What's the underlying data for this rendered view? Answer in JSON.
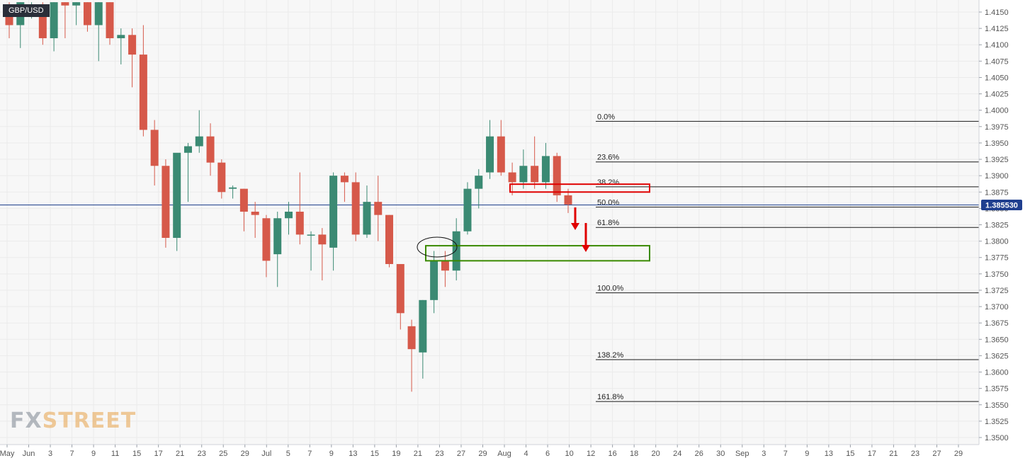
{
  "symbol": "GBP/USD",
  "logo": {
    "part1": "FX",
    "part2": "STREET"
  },
  "current_price_label": "1.385530",
  "colors": {
    "up": "#3b8a73",
    "down": "#d6594a",
    "fib": "#1a1a1a",
    "price_line": "#1c3f8c",
    "resistance_box": "#e00000",
    "target_box": "#3a8a00",
    "arrow": "#e00000"
  },
  "chart_data": {
    "type": "candlestick",
    "ylim": [
      1.3485,
      1.417
    ],
    "y_ticks": [
      "1.4150",
      "1.4125",
      "1.4100",
      "1.4075",
      "1.4050",
      "1.4025",
      "1.4000",
      "1.3975",
      "1.3950",
      "1.3925",
      "1.3900",
      "1.3875",
      "1.3850",
      "1.3825",
      "1.3800",
      "1.3775",
      "1.3750",
      "1.3725",
      "1.3700",
      "1.3675",
      "1.3650",
      "1.3625",
      "1.3600",
      "1.3575",
      "1.3550",
      "1.3525",
      "1.3500"
    ],
    "x_ticks": [
      "May",
      "Jun",
      "3",
      "7",
      "9",
      "11",
      "15",
      "17",
      "21",
      "23",
      "25",
      "29",
      "Jul",
      "5",
      "7",
      "9",
      "13",
      "15",
      "19",
      "21",
      "23",
      "27",
      "29",
      "Aug",
      "4",
      "6",
      "10",
      "12",
      "16",
      "18",
      "20",
      "24",
      "26",
      "30",
      "Sep",
      "3",
      "7",
      "9",
      "13",
      "15",
      "17",
      "21",
      "23",
      "27",
      "29"
    ],
    "candles": [
      {
        "o": 1.4155,
        "h": 1.4165,
        "l": 1.411,
        "c": 1.413
      },
      {
        "o": 1.413,
        "h": 1.4165,
        "l": 1.4095,
        "c": 1.4165
      },
      {
        "o": 1.416,
        "h": 1.4165,
        "l": 1.414,
        "c": 1.416
      },
      {
        "o": 1.416,
        "h": 1.4165,
        "l": 1.41,
        "c": 1.411
      },
      {
        "o": 1.411,
        "h": 1.4165,
        "l": 1.409,
        "c": 1.4165
      },
      {
        "o": 1.4165,
        "h": 1.4165,
        "l": 1.411,
        "c": 1.416
      },
      {
        "o": 1.416,
        "h": 1.4165,
        "l": 1.413,
        "c": 1.4165
      },
      {
        "o": 1.4165,
        "h": 1.4165,
        "l": 1.412,
        "c": 1.413
      },
      {
        "o": 1.413,
        "h": 1.4165,
        "l": 1.4075,
        "c": 1.4165
      },
      {
        "o": 1.4165,
        "h": 1.4165,
        "l": 1.41,
        "c": 1.411
      },
      {
        "o": 1.411,
        "h": 1.4125,
        "l": 1.407,
        "c": 1.4115
      },
      {
        "o": 1.4115,
        "h": 1.4125,
        "l": 1.4035,
        "c": 1.4085
      },
      {
        "o": 1.4085,
        "h": 1.413,
        "l": 1.396,
        "c": 1.397
      },
      {
        "o": 1.397,
        "h": 1.3985,
        "l": 1.3885,
        "c": 1.3915
      },
      {
        "o": 1.3915,
        "h": 1.3925,
        "l": 1.379,
        "c": 1.3805
      },
      {
        "o": 1.3805,
        "h": 1.393,
        "l": 1.3785,
        "c": 1.3935
      },
      {
        "o": 1.3935,
        "h": 1.395,
        "l": 1.386,
        "c": 1.3945
      },
      {
        "o": 1.3945,
        "h": 1.4,
        "l": 1.3935,
        "c": 1.396
      },
      {
        "o": 1.396,
        "h": 1.398,
        "l": 1.39,
        "c": 1.392
      },
      {
        "o": 1.392,
        "h": 1.3925,
        "l": 1.3865,
        "c": 1.3875
      },
      {
        "o": 1.388,
        "h": 1.3885,
        "l": 1.3865,
        "c": 1.3882
      },
      {
        "o": 1.388,
        "h": 1.388,
        "l": 1.3815,
        "c": 1.3845
      },
      {
        "o": 1.3845,
        "h": 1.386,
        "l": 1.3805,
        "c": 1.384
      },
      {
        "o": 1.3835,
        "h": 1.384,
        "l": 1.3745,
        "c": 1.377
      },
      {
        "o": 1.378,
        "h": 1.3845,
        "l": 1.373,
        "c": 1.3835
      },
      {
        "o": 1.3835,
        "h": 1.386,
        "l": 1.381,
        "c": 1.3845
      },
      {
        "o": 1.3845,
        "h": 1.3905,
        "l": 1.3795,
        "c": 1.381
      },
      {
        "o": 1.381,
        "h": 1.3815,
        "l": 1.3755,
        "c": 1.381
      },
      {
        "o": 1.381,
        "h": 1.382,
        "l": 1.374,
        "c": 1.3795
      },
      {
        "o": 1.379,
        "h": 1.3905,
        "l": 1.3755,
        "c": 1.39
      },
      {
        "o": 1.39,
        "h": 1.3905,
        "l": 1.386,
        "c": 1.389
      },
      {
        "o": 1.389,
        "h": 1.3905,
        "l": 1.38,
        "c": 1.381
      },
      {
        "o": 1.381,
        "h": 1.3885,
        "l": 1.3805,
        "c": 1.386
      },
      {
        "o": 1.386,
        "h": 1.39,
        "l": 1.38,
        "c": 1.384
      },
      {
        "o": 1.384,
        "h": 1.384,
        "l": 1.376,
        "c": 1.3765
      },
      {
        "o": 1.3765,
        "h": 1.3765,
        "l": 1.3665,
        "c": 1.369
      },
      {
        "o": 1.367,
        "h": 1.368,
        "l": 1.357,
        "c": 1.3635
      },
      {
        "o": 1.363,
        "h": 1.371,
        "l": 1.359,
        "c": 1.371
      },
      {
        "o": 1.371,
        "h": 1.3785,
        "l": 1.369,
        "c": 1.377
      },
      {
        "o": 1.377,
        "h": 1.3785,
        "l": 1.373,
        "c": 1.3755
      },
      {
        "o": 1.3755,
        "h": 1.3835,
        "l": 1.374,
        "c": 1.3815
      },
      {
        "o": 1.3815,
        "h": 1.389,
        "l": 1.381,
        "c": 1.388
      },
      {
        "o": 1.388,
        "h": 1.391,
        "l": 1.385,
        "c": 1.39
      },
      {
        "o": 1.3905,
        "h": 1.3985,
        "l": 1.3895,
        "c": 1.396
      },
      {
        "o": 1.396,
        "h": 1.3985,
        "l": 1.39,
        "c": 1.3905
      },
      {
        "o": 1.3905,
        "h": 1.392,
        "l": 1.387,
        "c": 1.389
      },
      {
        "o": 1.389,
        "h": 1.394,
        "l": 1.388,
        "c": 1.3915
      },
      {
        "o": 1.3915,
        "h": 1.396,
        "l": 1.388,
        "c": 1.389
      },
      {
        "o": 1.389,
        "h": 1.395,
        "l": 1.388,
        "c": 1.393
      },
      {
        "o": 1.393,
        "h": 1.3935,
        "l": 1.386,
        "c": 1.387
      },
      {
        "o": 1.387,
        "h": 1.388,
        "l": 1.3843,
        "c": 1.3856
      }
    ],
    "fib_levels": [
      {
        "label": "0.0%",
        "price": 1.3983
      },
      {
        "label": "23.6%",
        "price": 1.3921
      },
      {
        "label": "38.2%",
        "price": 1.3883
      },
      {
        "label": "50.0%",
        "price": 1.3852
      },
      {
        "label": "61.8%",
        "price": 1.3821
      },
      {
        "label": "100.0%",
        "price": 1.3721
      },
      {
        "label": "138.2%",
        "price": 1.3619
      },
      {
        "label": "161.8%",
        "price": 1.3555
      }
    ],
    "current_price": 1.38553,
    "resistance_zone": {
      "top": 1.3887,
      "bottom": 1.3875
    },
    "target_zone": {
      "top": 1.3793,
      "bottom": 1.377
    }
  }
}
